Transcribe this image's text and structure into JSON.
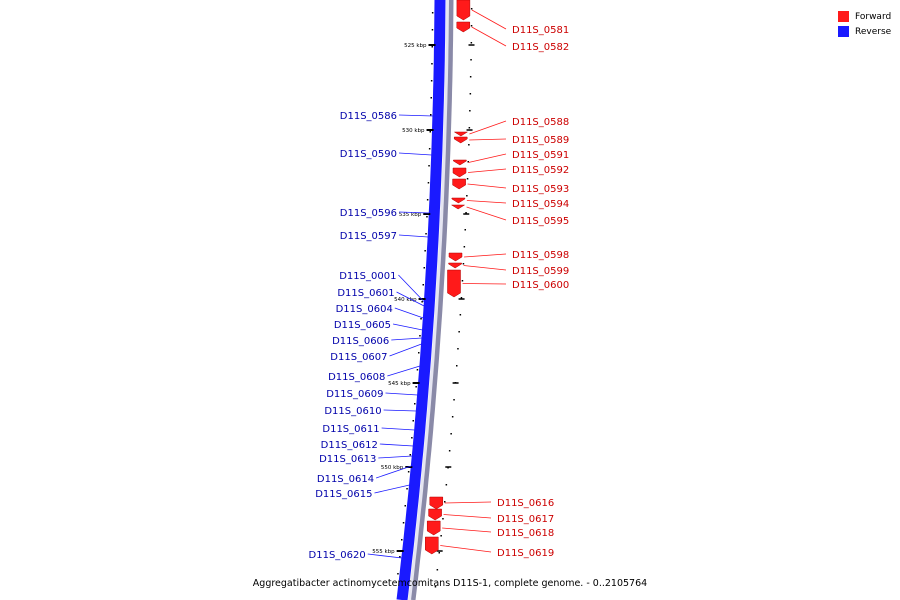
{
  "legend": {
    "forward_label": "Forward",
    "reverse_label": "Reverse",
    "forward_color": "#ff1a1a",
    "reverse_color": "#1a1aff"
  },
  "caption": "Aggregatibacter actinomycetemcomitans D11S-1, complete genome. - 0..2105764",
  "ticks": [
    "525 kbp",
    "530 kbp",
    "535 kbp",
    "540 kbp",
    "545 kbp",
    "550 kbp",
    "555 kbp"
  ],
  "forward_genes": [
    "D11S_0581",
    "D11S_0582",
    "D11S_0588",
    "D11S_0589",
    "D11S_0591",
    "D11S_0592",
    "D11S_0593",
    "D11S_0594",
    "D11S_0595",
    "D11S_0598",
    "D11S_0599",
    "D11S_0600",
    "D11S_0616",
    "D11S_0617",
    "D11S_0618",
    "D11S_0619"
  ],
  "reverse_genes": [
    "D11S_0586",
    "D11S_0590",
    "D11S_0596",
    "D11S_0597",
    "D11S_0001",
    "D11S_0601",
    "D11S_0604",
    "D11S_0605",
    "D11S_0606",
    "D11S_0607",
    "D11S_0608",
    "D11S_0609",
    "D11S_0610",
    "D11S_0611",
    "D11S_0612",
    "D11S_0613",
    "D11S_0614",
    "D11S_0615",
    "D11S_0620"
  ]
}
